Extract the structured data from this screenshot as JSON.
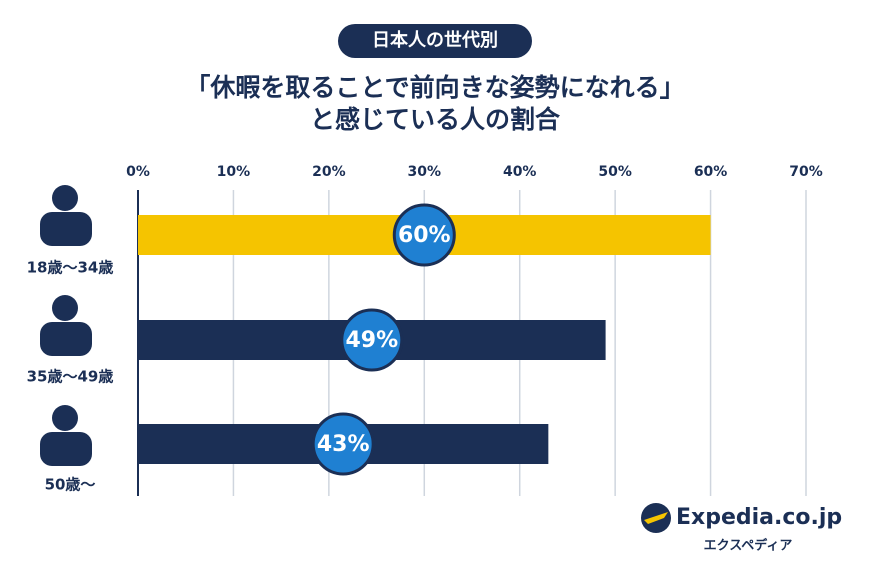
{
  "chart_data": {
    "type": "barh",
    "badge": "日本人の世代別",
    "title": "「休暇を取ることで前向きな姿勢になれる」",
    "subtitle": "と感じている人の割合",
    "categories": [
      "18歳～34歳",
      "35歳～49歳",
      "50歳～"
    ],
    "values": [
      60,
      49,
      43
    ],
    "value_labels": [
      "60%",
      "49%",
      "43%"
    ],
    "colors": [
      "#f5c400",
      "#1b2f55",
      "#1b2f55"
    ],
    "xlim": [
      0,
      70
    ],
    "xticks": [
      {
        "value": 0,
        "label": "0%"
      },
      {
        "value": 10,
        "label": "10%"
      },
      {
        "value": 20,
        "label": "20%"
      },
      {
        "value": 30,
        "label": "30%"
      },
      {
        "value": 40,
        "label": "40%"
      },
      {
        "value": 50,
        "label": "50%"
      },
      {
        "value": 60,
        "label": "60%"
      },
      {
        "value": 70,
        "label": "70%"
      }
    ],
    "grid": true,
    "brand": "Expedia.co.jp",
    "brand_sub": "エクスペディア"
  }
}
